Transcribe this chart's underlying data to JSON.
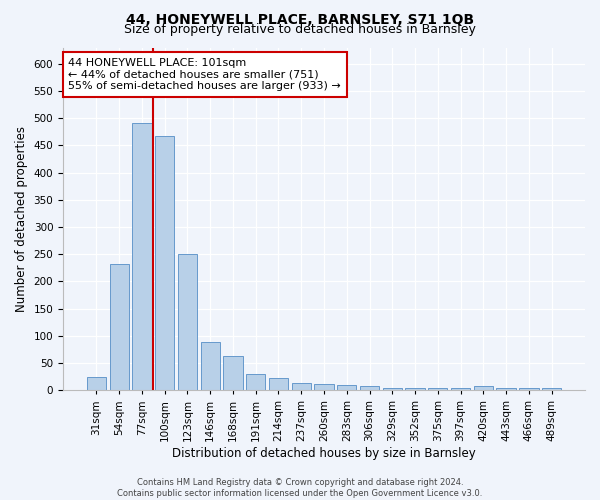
{
  "title": "44, HONEYWELL PLACE, BARNSLEY, S71 1QB",
  "subtitle": "Size of property relative to detached houses in Barnsley",
  "xlabel": "Distribution of detached houses by size in Barnsley",
  "ylabel": "Number of detached properties",
  "categories": [
    "31sqm",
    "54sqm",
    "77sqm",
    "100sqm",
    "123sqm",
    "146sqm",
    "168sqm",
    "191sqm",
    "214sqm",
    "237sqm",
    "260sqm",
    "283sqm",
    "306sqm",
    "329sqm",
    "352sqm",
    "375sqm",
    "397sqm",
    "420sqm",
    "443sqm",
    "466sqm",
    "489sqm"
  ],
  "values": [
    25,
    232,
    492,
    468,
    250,
    88,
    63,
    30,
    22,
    13,
    11,
    9,
    7,
    4,
    4,
    4,
    4,
    7,
    4,
    4,
    5
  ],
  "bar_color": "#b8d0e8",
  "bar_edge_color": "#6699cc",
  "property_line_x": 2.5,
  "annotation_text": "44 HONEYWELL PLACE: 101sqm\n← 44% of detached houses are smaller (751)\n55% of semi-detached houses are larger (933) →",
  "annotation_box_color": "#ffffff",
  "annotation_box_edge_color": "#cc0000",
  "vline_color": "#cc0000",
  "ylim": [
    0,
    630
  ],
  "yticks": [
    0,
    50,
    100,
    150,
    200,
    250,
    300,
    350,
    400,
    450,
    500,
    550,
    600
  ],
  "footer": "Contains HM Land Registry data © Crown copyright and database right 2024.\nContains public sector information licensed under the Open Government Licence v3.0.",
  "title_fontsize": 10,
  "subtitle_fontsize": 9,
  "xlabel_fontsize": 8.5,
  "ylabel_fontsize": 8.5,
  "tick_fontsize": 7.5,
  "annotation_fontsize": 8,
  "footer_fontsize": 6,
  "bg_color": "#f0f4fb",
  "plot_bg_color": "#f0f4fb"
}
